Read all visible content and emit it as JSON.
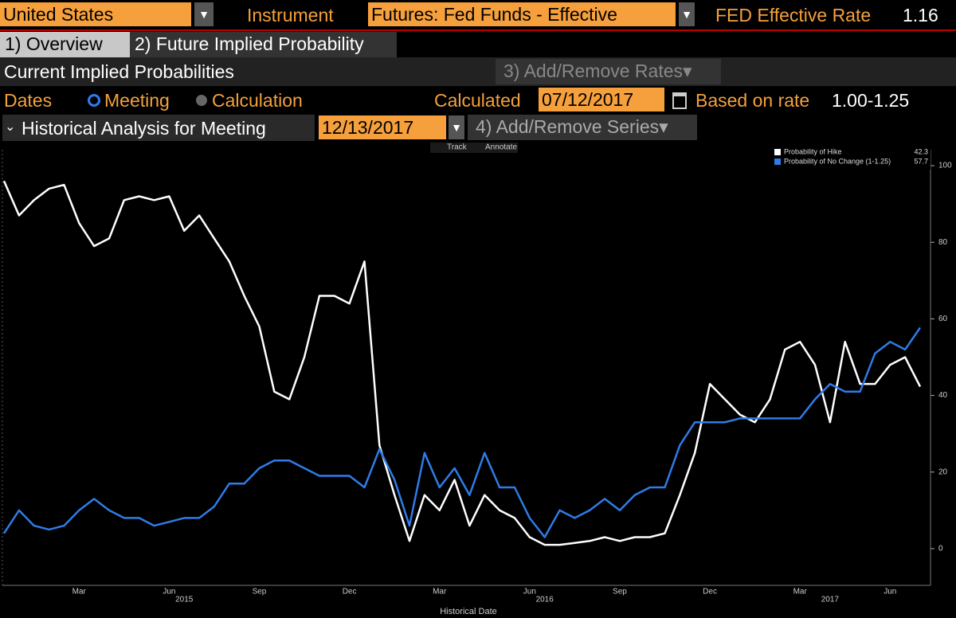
{
  "toolbar": {
    "country": "United States",
    "instrument_label": "Instrument",
    "instrument": "Futures: Fed Funds - Effective",
    "rate_label": "FED Effective Rate",
    "rate_value": "1.16"
  },
  "tabs": [
    "1) Overview",
    "2) Future Implied Probability"
  ],
  "section": {
    "title": "Current Implied Probabilities",
    "rates_button": "3) Add/Remove Rates"
  },
  "dates_row": {
    "label": "Dates",
    "option_meeting": "Meeting",
    "option_calculation": "Calculation",
    "calculated_label": "Calculated",
    "calculated_date": "07/12/2017",
    "based_label": "Based on rate",
    "based_value": "1.00-1.25"
  },
  "history_row": {
    "title": "Historical Analysis for Meeting",
    "meeting_date": "12/13/2017",
    "series_button": "4) Add/Remove Series"
  },
  "chart_tools": {
    "track": "Track",
    "annotate": "Annotate"
  },
  "chart_data": {
    "type": "line",
    "x_label": "Historical Date",
    "categories": [
      null,
      null,
      null,
      null,
      null,
      "Mar",
      null,
      null,
      null,
      null,
      null,
      "Jun",
      null,
      null,
      null,
      null,
      null,
      "Sep",
      null,
      null,
      null,
      null,
      null,
      "Dec",
      null,
      null,
      null,
      null,
      null,
      "Mar",
      null,
      null,
      null,
      null,
      null,
      "Jun",
      null,
      null,
      null,
      null,
      null,
      "Sep",
      null,
      null,
      null,
      null,
      null,
      "Dec",
      null,
      null,
      null,
      null,
      null,
      "Mar",
      null,
      null,
      null,
      null,
      null,
      "Jun",
      null,
      null
    ],
    "year_labels": [
      null,
      null,
      null,
      null,
      null,
      null,
      null,
      null,
      null,
      null,
      null,
      null,
      "2015",
      null,
      null,
      null,
      null,
      null,
      null,
      null,
      null,
      null,
      null,
      null,
      null,
      null,
      null,
      null,
      null,
      null,
      null,
      null,
      null,
      null,
      null,
      null,
      "2016",
      null,
      null,
      null,
      null,
      null,
      null,
      null,
      null,
      null,
      null,
      null,
      null,
      null,
      null,
      null,
      null,
      null,
      null,
      "2017",
      null,
      null,
      null,
      null,
      null,
      null
    ],
    "series": [
      {
        "name": "Probability of Hike",
        "color": "#ffffff",
        "last_value": 42.3,
        "values": [
          96,
          87,
          91,
          94,
          95,
          85,
          79,
          81,
          91,
          92,
          91,
          92,
          83,
          87,
          81,
          75,
          66,
          58,
          41,
          39,
          50,
          66,
          66,
          64,
          75,
          27,
          14,
          2,
          14,
          10,
          18,
          6,
          14,
          10,
          8,
          3,
          1,
          1,
          1.5,
          2,
          3,
          2,
          3,
          3,
          4,
          14,
          25,
          43,
          39,
          35,
          33,
          39,
          52,
          54,
          48,
          33,
          54,
          43,
          43,
          48,
          50,
          42.3
        ]
      },
      {
        "name": "Probability of No Change (1-1.25)",
        "color": "#2f7ce8",
        "last_value": 57.7,
        "values": [
          4,
          10,
          6,
          5,
          6,
          10,
          13,
          10,
          8,
          8,
          6,
          7,
          8,
          8,
          11,
          17,
          17,
          21,
          23,
          23,
          21,
          19,
          19,
          19,
          16,
          26,
          18,
          6,
          25,
          16,
          21,
          14,
          25,
          16,
          16,
          8,
          3,
          10,
          8,
          10,
          13,
          10,
          14,
          16,
          16,
          27,
          33,
          33,
          33,
          34,
          34,
          34,
          34,
          34,
          39,
          43,
          41,
          41,
          51,
          54,
          52,
          57.7
        ]
      }
    ],
    "ylim": [
      -10,
      104
    ],
    "yticks": [
      0,
      20,
      40,
      60,
      80,
      100
    ],
    "grid": false,
    "legend": "top-right"
  }
}
